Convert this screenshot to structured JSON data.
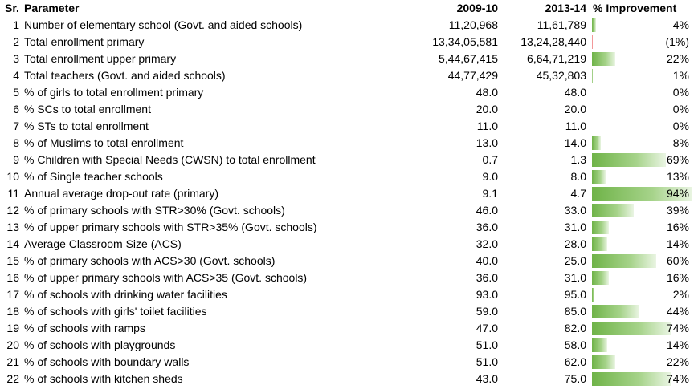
{
  "table": {
    "header": [
      "Sr.",
      "Parameter",
      "2009-10",
      "2013-14",
      "% Improvement"
    ],
    "rows": [
      [
        1,
        "Number of elementary school (Govt. and aided schools)",
        "11,20,968",
        "11,61,789",
        {
          "value": 4,
          "label": "4%"
        }
      ],
      [
        2,
        "Total enrollment primary",
        "13,34,05,581",
        "13,24,28,440",
        {
          "value": -1,
          "label": "(1%)"
        }
      ],
      [
        3,
        "Total enrollment upper primary",
        "5,44,67,415",
        "6,64,71,219",
        {
          "value": 22,
          "label": "22%"
        }
      ],
      [
        4,
        "Total teachers (Govt. and aided schools)",
        "44,77,429",
        "45,32,803",
        {
          "value": 1,
          "label": "1%"
        }
      ],
      [
        5,
        "% of girls to total enrollment primary",
        "48.0",
        "48.0",
        {
          "value": 0,
          "label": "0%"
        }
      ],
      [
        6,
        "% SCs to total enrollment",
        "20.0",
        "20.0",
        {
          "value": 0,
          "label": "0%"
        }
      ],
      [
        7,
        "% STs to total enrollment",
        "11.0",
        "11.0",
        {
          "value": 0,
          "label": "0%"
        }
      ],
      [
        8,
        "% of Muslims to total enrollment",
        "13.0",
        "14.0",
        {
          "value": 8,
          "label": "8%"
        }
      ],
      [
        9,
        "% Children with Special Needs (CWSN) to total enrollment",
        "0.7",
        "1.3",
        {
          "value": 69,
          "label": "69%"
        }
      ],
      [
        10,
        "% of Single teacher schools",
        "9.0",
        "8.0",
        {
          "value": 13,
          "label": "13%"
        }
      ],
      [
        11,
        "Annual average drop-out rate (primary)",
        "9.1",
        "4.7",
        {
          "value": 94,
          "label": "94%"
        }
      ],
      [
        12,
        "% of primary schools with STR>30% (Govt. schools)",
        "46.0",
        "33.0",
        {
          "value": 39,
          "label": "39%"
        }
      ],
      [
        13,
        "% of upper primary schools with STR>35% (Govt. schools)",
        "36.0",
        "31.0",
        {
          "value": 16,
          "label": "16%"
        }
      ],
      [
        14,
        "Average Classroom Size (ACS)",
        "32.0",
        "28.0",
        {
          "value": 14,
          "label": "14%"
        }
      ],
      [
        15,
        "% of primary schools with ACS>30 (Govt. schools)",
        "40.0",
        "25.0",
        {
          "value": 60,
          "label": "60%"
        }
      ],
      [
        16,
        "% of upper primary schools with ACS>35 (Govt. schools)",
        "36.0",
        "31.0",
        {
          "value": 16,
          "label": "16%"
        }
      ],
      [
        17,
        "% of schools with drinking water facilities",
        "93.0",
        "95.0",
        {
          "value": 2,
          "label": "2%"
        }
      ],
      [
        18,
        "% of schools with girls' toilet facilities",
        "59.0",
        "85.0",
        {
          "value": 44,
          "label": "44%"
        }
      ],
      [
        19,
        "% of schools with ramps",
        "47.0",
        "82.0",
        {
          "value": 74,
          "label": "74%"
        }
      ],
      [
        20,
        "% of schools with playgrounds",
        "51.0",
        "58.0",
        {
          "value": 14,
          "label": "14%"
        }
      ],
      [
        21,
        "% of schools with boundary walls",
        "51.0",
        "62.0",
        {
          "value": 22,
          "label": "22%"
        }
      ],
      [
        22,
        "% of schools with kitchen sheds",
        "43.0",
        "75.0",
        {
          "value": 74,
          "label": "74%"
        }
      ]
    ]
  }
}
